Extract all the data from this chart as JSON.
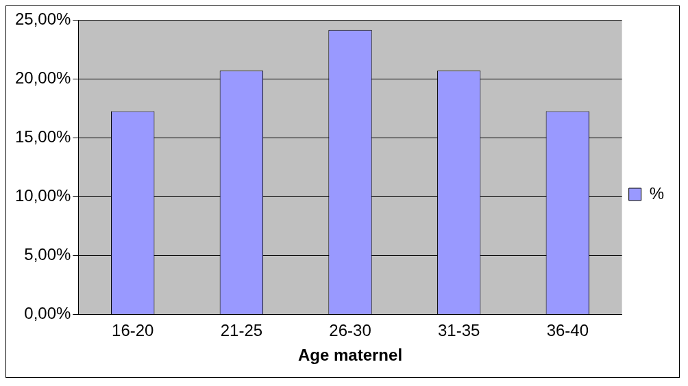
{
  "chart_data": {
    "type": "bar",
    "xlabel": "Age maternel",
    "categories": [
      "16-20",
      "21-25",
      "26-30",
      "31-35",
      "36-40"
    ],
    "series": [
      {
        "name": "%",
        "color": "#9999ff",
        "values": [
          17.24,
          20.69,
          24.14,
          20.69,
          17.24
        ]
      }
    ],
    "ylim": [
      0,
      25
    ],
    "yticks": [
      {
        "value": 0,
        "label": "0,00%"
      },
      {
        "value": 5,
        "label": "5,00%"
      },
      {
        "value": 10,
        "label": "10,00%"
      },
      {
        "value": 15,
        "label": "15,00%"
      },
      {
        "value": 20,
        "label": "20,00%"
      },
      {
        "value": 25,
        "label": "25,00%"
      }
    ],
    "grid": "y",
    "legend": "right"
  }
}
